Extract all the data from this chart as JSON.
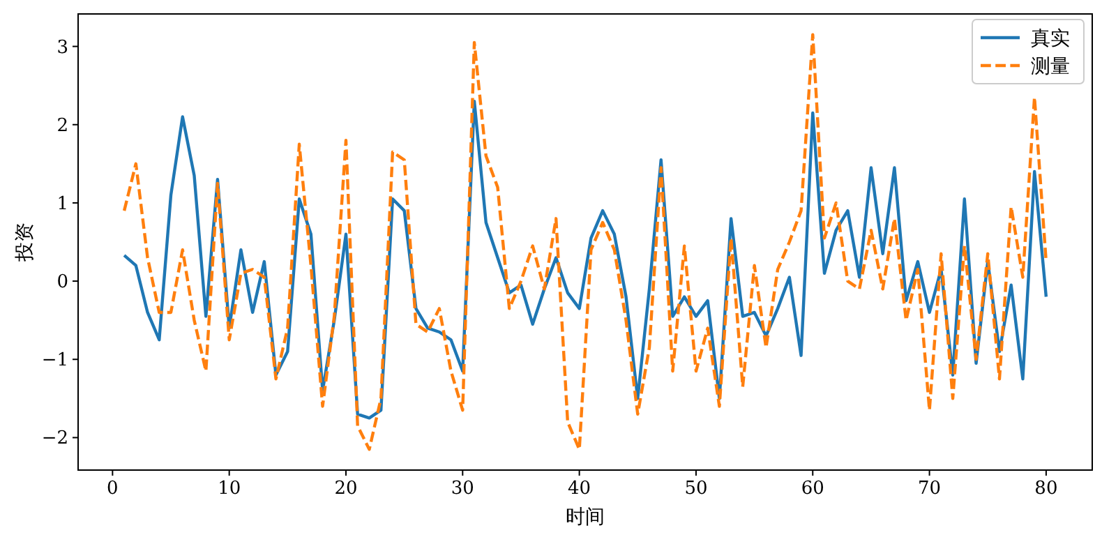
{
  "chart_data": {
    "type": "line",
    "xlabel": "时间",
    "ylabel": "投资",
    "legend": "top right",
    "x": [
      1,
      2,
      3,
      4,
      5,
      6,
      7,
      8,
      9,
      10,
      11,
      12,
      13,
      14,
      15,
      16,
      17,
      18,
      19,
      20,
      21,
      22,
      23,
      24,
      25,
      26,
      27,
      28,
      29,
      30,
      31,
      32,
      33,
      34,
      35,
      36,
      37,
      38,
      39,
      40,
      41,
      42,
      43,
      44,
      45,
      46,
      47,
      48,
      49,
      50,
      51,
      52,
      53,
      54,
      55,
      56,
      57,
      58,
      59,
      60,
      61,
      62,
      63,
      64,
      65,
      66,
      67,
      68,
      69,
      70,
      71,
      72,
      73,
      74,
      75,
      76,
      77,
      78,
      79,
      80
    ],
    "xlim": [
      -2.95,
      83.95
    ],
    "xticks": [
      0,
      10,
      20,
      30,
      40,
      50,
      60,
      70,
      80
    ],
    "ylim": [
      -2.415,
      3.415
    ],
    "yticks": [
      {
        "value": -2,
        "label": "−2"
      },
      {
        "value": -1,
        "label": "−1"
      },
      0,
      1,
      2,
      3
    ],
    "series": [
      {
        "name": "真实",
        "color": "#1f77b4",
        "line_style": "solid",
        "values": [
          0.33,
          0.2,
          -0.4,
          -0.75,
          1.1,
          2.1,
          1.35,
          -0.45,
          1.3,
          -0.6,
          0.4,
          -0.4,
          0.25,
          -1.2,
          -0.9,
          1.05,
          0.6,
          -1.4,
          -0.5,
          0.6,
          -1.7,
          -1.75,
          -1.65,
          1.05,
          0.9,
          -0.35,
          -0.6,
          -0.65,
          -0.75,
          -1.15,
          2.3,
          0.75,
          0.3,
          -0.15,
          -0.05,
          -0.55,
          -0.1,
          0.3,
          -0.15,
          -0.35,
          0.55,
          0.9,
          0.6,
          -0.2,
          -1.5,
          -0.1,
          1.55,
          -0.45,
          -0.2,
          -0.45,
          -0.25,
          -1.5,
          0.8,
          -0.45,
          -0.4,
          -0.7,
          -0.35,
          0.05,
          -0.95,
          2.15,
          0.1,
          0.65,
          0.9,
          0.05,
          1.45,
          0.35,
          1.45,
          -0.25,
          0.25,
          -0.4,
          0.15,
          -1.2,
          1.05,
          -1.05,
          0.25,
          -0.9,
          -0.05,
          -1.25,
          1.4,
          -0.2
        ]
      },
      {
        "name": "测量",
        "color": "#ff7f0e",
        "line_style": "dashed",
        "values": [
          0.9,
          1.5,
          0.3,
          -0.4,
          -0.4,
          0.4,
          -0.5,
          -1.15,
          1.25,
          -0.75,
          0.1,
          0.15,
          0.05,
          -1.25,
          -0.6,
          1.75,
          0.2,
          -1.6,
          -0.45,
          1.8,
          -1.85,
          -2.15,
          -1.5,
          1.65,
          1.55,
          -0.55,
          -0.65,
          -0.35,
          -1.15,
          -1.65,
          3.05,
          1.6,
          1.2,
          -0.35,
          0.0,
          0.45,
          -0.1,
          0.8,
          -1.8,
          -2.15,
          0.4,
          0.75,
          0.4,
          -0.5,
          -1.7,
          -0.85,
          1.45,
          -1.15,
          0.45,
          -1.15,
          -0.6,
          -1.6,
          0.55,
          -1.35,
          0.2,
          -0.85,
          0.15,
          0.5,
          0.9,
          3.15,
          0.55,
          1.0,
          0.0,
          -0.1,
          0.65,
          -0.1,
          0.8,
          -0.5,
          0.15,
          -1.65,
          0.35,
          -1.5,
          0.45,
          -1.0,
          0.35,
          -1.25,
          0.95,
          0.05,
          2.35,
          0.25
        ]
      }
    ]
  }
}
